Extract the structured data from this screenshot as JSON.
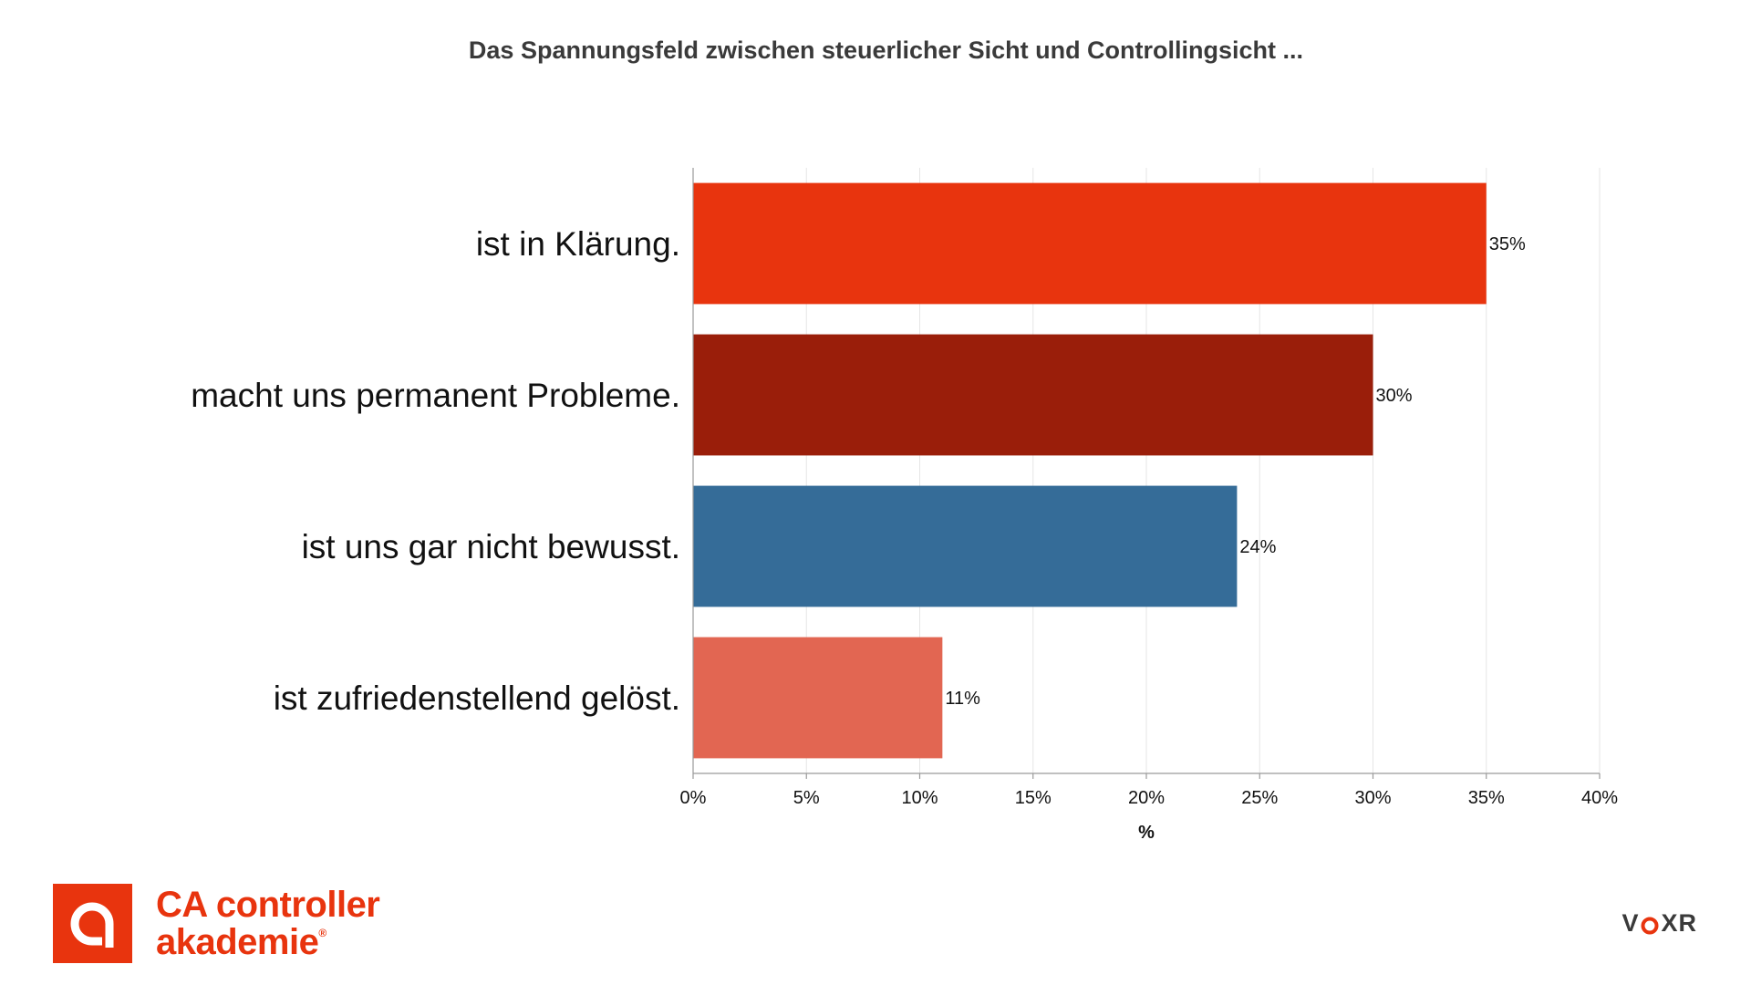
{
  "chart_data": {
    "type": "bar",
    "orientation": "horizontal",
    "title": "Das Spannungsfeld zwischen steuerlicher Sicht und Controllingsicht ...",
    "xlabel": "%",
    "ylabel": "",
    "xlim": [
      0,
      40
    ],
    "x_ticks": [
      "0%",
      "5%",
      "10%",
      "15%",
      "20%",
      "25%",
      "30%",
      "35%",
      "40%"
    ],
    "grid": true,
    "categories": [
      "ist in Klärung.",
      "macht uns permanent Probleme.",
      "ist uns gar nicht bewusst.",
      "ist zufriedenstellend gelöst."
    ],
    "values": [
      35,
      30,
      24,
      11
    ],
    "data_labels": [
      "35%",
      "30%",
      "24%",
      "11%"
    ],
    "colors": [
      "#e8340e",
      "#9a1e0a",
      "#356c98",
      "#e26652"
    ]
  },
  "logos": {
    "left": {
      "line1": "CA controller",
      "line2": "akademie",
      "registered": "®",
      "icon": "ca-logo-icon",
      "color": "#e8340e"
    },
    "right": {
      "text_a": "V",
      "text_b": "XR",
      "icon": "voxr-o-icon",
      "color": "#3a3a3a",
      "accent": "#e8340e"
    }
  }
}
